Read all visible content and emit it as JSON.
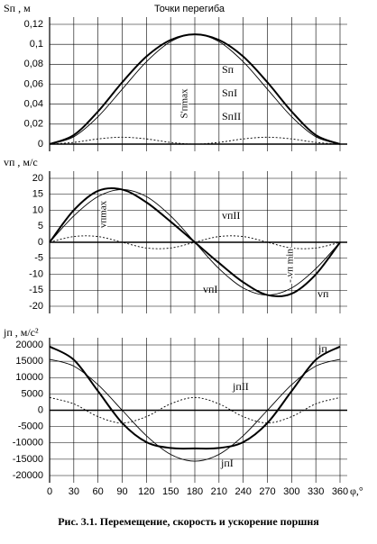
{
  "chart_data": [
    {
      "type": "line",
      "ylabel": "Sп , м",
      "x": [
        0,
        30,
        60,
        90,
        120,
        150,
        180,
        210,
        240,
        270,
        300,
        330,
        360
      ],
      "series": [
        {
          "name": "Sп",
          "color": "#000000",
          "line_style": "thick",
          "values": [
            0,
            0.0091,
            0.0327,
            0.0619,
            0.0877,
            0.1043,
            0.11,
            0.1043,
            0.0877,
            0.0619,
            0.0327,
            0.0091,
            0
          ]
        },
        {
          "name": "SпI",
          "color": "#000000",
          "line_style": "thin",
          "values": [
            0,
            0.0074,
            0.0275,
            0.055,
            0.0825,
            0.1026,
            0.11,
            0.1026,
            0.0825,
            0.055,
            0.0275,
            0.0074,
            0
          ]
        },
        {
          "name": "SпII",
          "color": "#000000",
          "line_style": "dotted",
          "values": [
            0,
            0.0017,
            0.0052,
            0.0069,
            0.0052,
            0.0017,
            0,
            0.0017,
            0.0052,
            0.0069,
            0.0052,
            0.0017,
            0
          ]
        }
      ],
      "ylim": [
        0,
        0.12
      ],
      "yticks": [
        0,
        {
          "value": 0.02,
          "label": "0,02"
        },
        {
          "value": 0.04,
          "label": "0,04"
        },
        {
          "value": 0.06,
          "label": "0,06"
        },
        {
          "value": 0.08,
          "label": "0,08"
        },
        {
          "value": 0.1,
          "label": "0,1"
        },
        {
          "value": 0.12,
          "label": "0,12"
        }
      ],
      "annotations": [
        "Точки перегиба",
        "S'пmax"
      ],
      "grid": true
    },
    {
      "type": "line",
      "ylabel": "vп , м/с",
      "x": [
        0,
        30,
        60,
        90,
        120,
        150,
        180,
        210,
        240,
        270,
        300,
        330,
        360
      ],
      "series": [
        {
          "name": "vп",
          "color": "#000000",
          "line_style": "thick",
          "values": [
            0,
            10.04,
            16.08,
            16.5,
            12.5,
            6.46,
            0,
            -6.46,
            -12.5,
            -16.5,
            -16.08,
            -10.04,
            0
          ]
        },
        {
          "name": "vпI",
          "color": "#000000",
          "line_style": "thin",
          "values": [
            0,
            8.25,
            14.29,
            16.5,
            14.29,
            8.25,
            0,
            -8.25,
            -14.29,
            -16.5,
            -14.29,
            -8.25,
            0
          ]
        },
        {
          "name": "vпII",
          "color": "#000000",
          "line_style": "dotted",
          "values": [
            0,
            1.79,
            1.79,
            0,
            -1.79,
            -1.79,
            0,
            1.79,
            1.79,
            0,
            -1.79,
            -1.79,
            0
          ]
        }
      ],
      "ylim": [
        -20,
        20
      ],
      "yticks": [
        -20,
        -15,
        -10,
        -5,
        0,
        5,
        10,
        15,
        20
      ],
      "annotations": [
        "vпmax",
        "- vп min"
      ],
      "grid": true
    },
    {
      "type": "line",
      "ylabel": "jп , м/с²",
      "xlabel": "φ,°",
      "x": [
        0,
        30,
        60,
        90,
        120,
        150,
        180,
        210,
        240,
        270,
        300,
        330,
        360
      ],
      "series": [
        {
          "name": "jп",
          "color": "#000000",
          "line_style": "thick",
          "values": [
            19500,
            15460,
            5850,
            -3900,
            -9750,
            -11560,
            -11700,
            -11560,
            -9750,
            -3900,
            5850,
            15460,
            19500
          ]
        },
        {
          "name": "jпI",
          "color": "#000000",
          "line_style": "thin",
          "values": [
            15600,
            13510,
            7800,
            0,
            -7800,
            -13510,
            -15600,
            -13510,
            -7800,
            0,
            7800,
            13510,
            15600
          ]
        },
        {
          "name": "jпII",
          "color": "#000000",
          "line_style": "dotted",
          "values": [
            3900,
            1950,
            -1950,
            -3900,
            -1950,
            1950,
            3900,
            1950,
            -1950,
            -3900,
            -1950,
            1950,
            3900
          ]
        }
      ],
      "ylim": [
        -20000,
        20000
      ],
      "yticks": [
        -20000,
        -15000,
        -10000,
        -5000,
        0,
        5000,
        10000,
        15000,
        20000
      ],
      "xlim": [
        0,
        360
      ],
      "xticks": [
        0,
        30,
        60,
        90,
        120,
        150,
        180,
        210,
        240,
        270,
        300,
        330,
        360
      ],
      "grid": true
    }
  ],
  "caption": "Рис. 3.1. Перемещение, скорость и ускорение поршня"
}
